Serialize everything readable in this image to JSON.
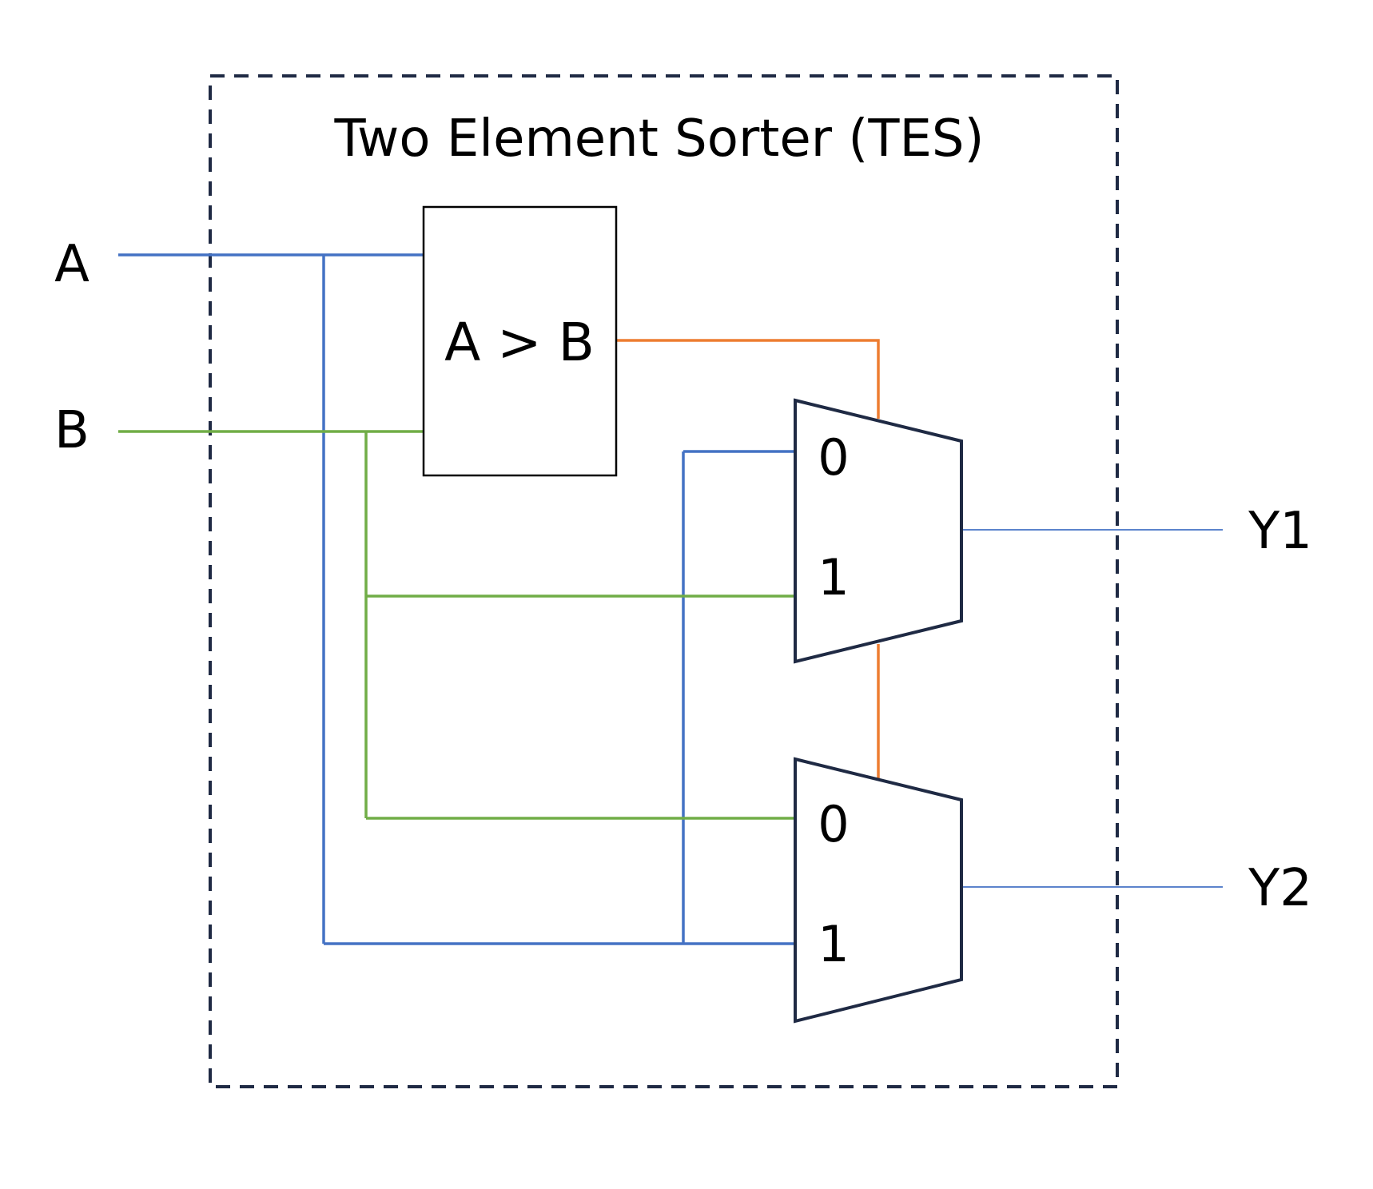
{
  "title": "Two Element Sorter (TES)",
  "inputs": {
    "a": "A",
    "b": "B"
  },
  "outputs": {
    "y1": "Y1",
    "y2": "Y2"
  },
  "comparator": {
    "label": "A > B"
  },
  "mux_top": {
    "port0": "0",
    "port1": "1"
  },
  "mux_bottom": {
    "port0": "0",
    "port1": "1"
  },
  "colors": {
    "wire_a": "#4472c4",
    "wire_b": "#70ad47",
    "wire_select": "#ed7d31",
    "outline": "#1f2a44",
    "border_dash": "#1f2a44"
  }
}
